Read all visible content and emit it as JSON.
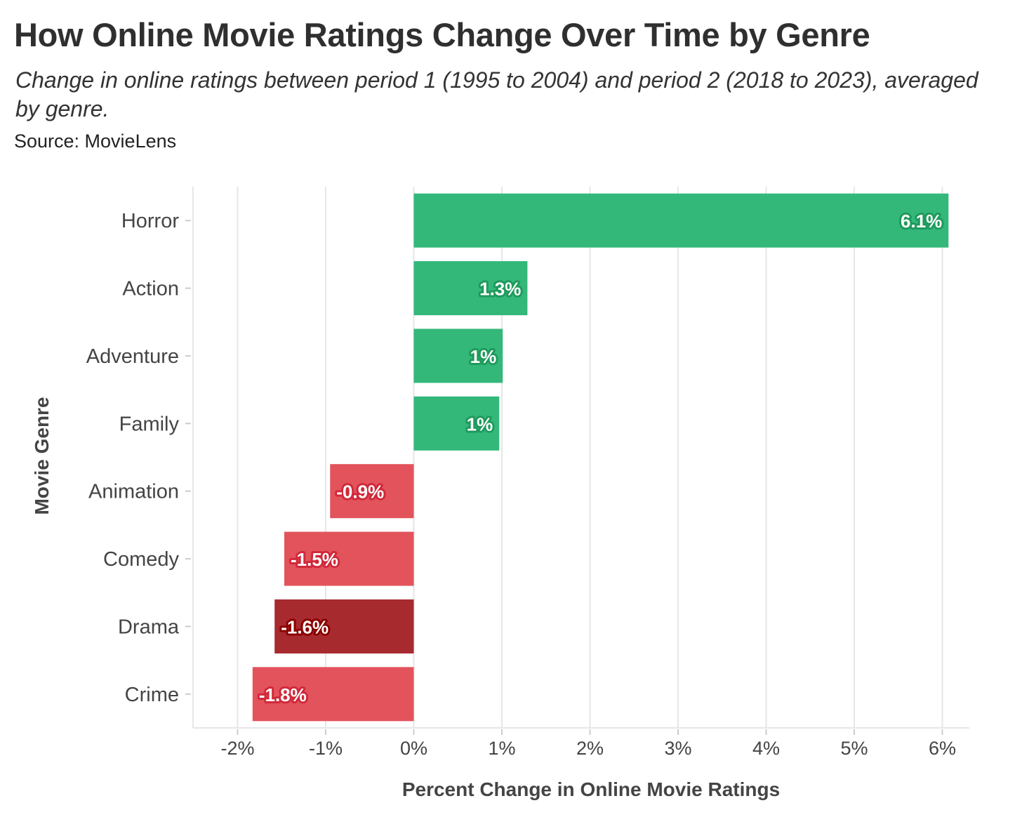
{
  "chart_data": {
    "type": "bar",
    "orientation": "horizontal",
    "title": "How Online Movie Ratings Change Over Time by Genre",
    "subtitle": "Change in online ratings between period 1 (1995 to 2004) and period 2 (2018 to 2023), averaged by genre.",
    "caption": "Source: MovieLens",
    "xlabel": "Percent Change in Online Movie Ratings",
    "ylabel": "Movie Genre",
    "xlim": [
      -2.5,
      6.3
    ],
    "x_ticks": [
      -2,
      -1,
      0,
      1,
      2,
      3,
      4,
      5,
      6
    ],
    "x_tick_labels": [
      "-2%",
      "-1%",
      "0%",
      "1%",
      "2%",
      "3%",
      "4%",
      "5%",
      "6%"
    ],
    "grid": true,
    "categories": [
      "Horror",
      "Action",
      "Adventure",
      "Family",
      "Animation",
      "Comedy",
      "Drama",
      "Crime"
    ],
    "values": [
      6.07,
      1.29,
      1.01,
      0.97,
      -0.95,
      -1.47,
      -1.58,
      -1.83
    ],
    "labels": [
      "6.1%",
      "1.3%",
      "1%",
      "1%",
      "-0.9%",
      "-1.5%",
      "-1.6%",
      "-1.8%"
    ],
    "highlight": [
      "normal",
      "normal",
      "normal",
      "normal",
      "normal",
      "normal",
      "highlight",
      "normal"
    ],
    "colors": {
      "positive": "#33b87a",
      "positive_outline": "#1e9a5c",
      "negative": "#e2535c",
      "negative_outline": "#d1283a",
      "highlight_negative": "#a72a2f",
      "highlight_outline": "#8b0000",
      "grid": "#e6e6e6"
    }
  }
}
